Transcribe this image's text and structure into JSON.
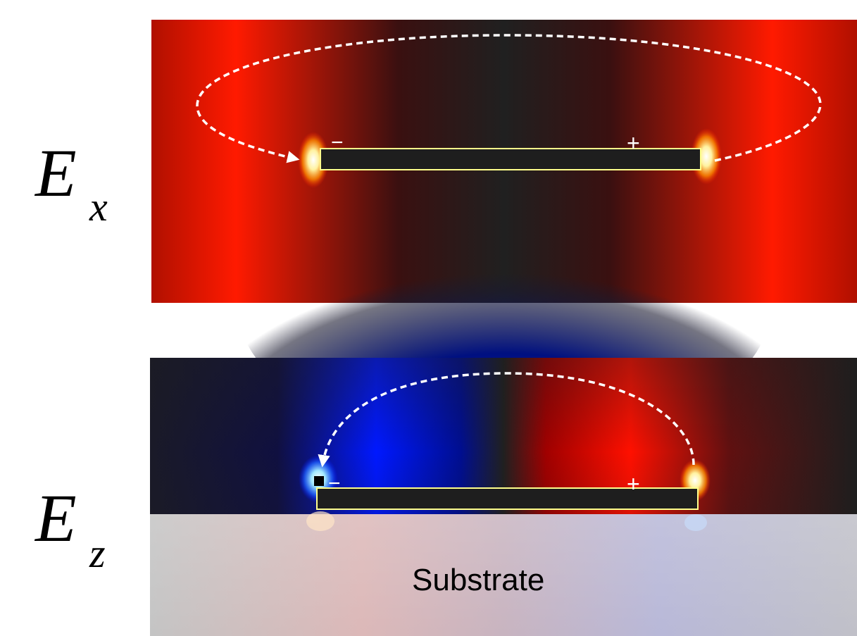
{
  "labels": {
    "top_field_letter": "E",
    "top_field_subscript": "x",
    "bottom_field_letter": "E",
    "bottom_field_subscript": "z",
    "substrate": "Substrate",
    "minus_sign": "−",
    "plus_sign": "+"
  },
  "colors": {
    "positive_field": "#ff1a00",
    "negative_field": "#0010c8",
    "zero_field": "#1e1e1e",
    "rod_outline": "#ffff8c",
    "arrow": "#ffffff",
    "substrate": "#c0c0c0"
  }
}
